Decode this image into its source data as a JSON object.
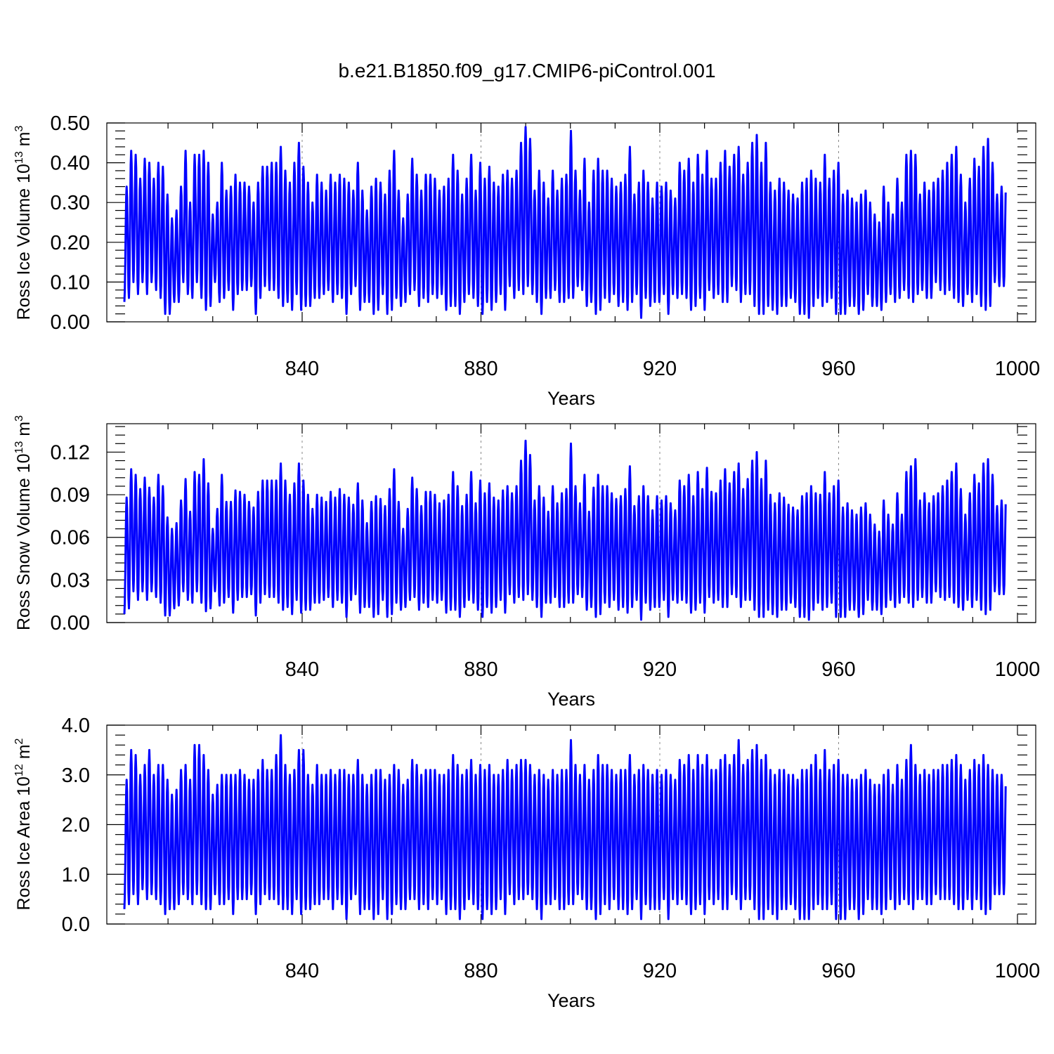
{
  "figure_title": "b.e21.B1850.f09_g17.CMIP6-piControl.001",
  "colors": {
    "series": "#0000ff",
    "axis": "#000000",
    "grid": "#888888"
  },
  "chart_data": [
    {
      "type": "line",
      "ylabel": {
        "text": "Ross Ice Volume 10",
        "exp": "13",
        "unit": " m",
        "unit_exp": "3"
      },
      "xlabel": "Years",
      "xlim": [
        800,
        1000
      ],
      "ylim": [
        0.0,
        0.5
      ],
      "xticks": [
        840,
        880,
        920,
        960,
        1000
      ],
      "yticks": [
        "0.00",
        "0.10",
        "0.20",
        "0.30",
        "0.40",
        "0.50"
      ],
      "ytick_values": [
        0.0,
        0.1,
        0.2,
        0.3,
        0.4,
        0.5
      ],
      "grid_x": [
        840,
        880,
        920,
        960
      ],
      "series_name": "Ross Ice Volume",
      "period_years": 1,
      "peaks": [
        0.34,
        0.43,
        0.42,
        0.36,
        0.41,
        0.4,
        0.36,
        0.4,
        0.39,
        0.32,
        0.26,
        0.28,
        0.34,
        0.43,
        0.3,
        0.42,
        0.42,
        0.43,
        0.4,
        0.27,
        0.3,
        0.4,
        0.33,
        0.34,
        0.37,
        0.35,
        0.35,
        0.34,
        0.3,
        0.35,
        0.39,
        0.39,
        0.4,
        0.4,
        0.44,
        0.38,
        0.35,
        0.4,
        0.45,
        0.39,
        0.35,
        0.3,
        0.37,
        0.35,
        0.33,
        0.37,
        0.35,
        0.37,
        0.36,
        0.35,
        0.33,
        0.4,
        0.33,
        0.28,
        0.34,
        0.36,
        0.35,
        0.32,
        0.38,
        0.43,
        0.33,
        0.26,
        0.32,
        0.41,
        0.37,
        0.33,
        0.37,
        0.37,
        0.36,
        0.33,
        0.34,
        0.36,
        0.42,
        0.38,
        0.32,
        0.36,
        0.42,
        0.33,
        0.4,
        0.36,
        0.39,
        0.35,
        0.34,
        0.37,
        0.38,
        0.36,
        0.38,
        0.45,
        0.49,
        0.46,
        0.33,
        0.38,
        0.35,
        0.31,
        0.38,
        0.33,
        0.36,
        0.37,
        0.48,
        0.38,
        0.33,
        0.41,
        0.3,
        0.38,
        0.41,
        0.38,
        0.38,
        0.36,
        0.34,
        0.35,
        0.37,
        0.44,
        0.32,
        0.35,
        0.38,
        0.35,
        0.31,
        0.35,
        0.34,
        0.35,
        0.33,
        0.31,
        0.4,
        0.38,
        0.41,
        0.35,
        0.42,
        0.37,
        0.43,
        0.36,
        0.36,
        0.4,
        0.43,
        0.39,
        0.42,
        0.44,
        0.37,
        0.4,
        0.45,
        0.47,
        0.4,
        0.45,
        0.35,
        0.33,
        0.36,
        0.35,
        0.33,
        0.32,
        0.31,
        0.35,
        0.36,
        0.38,
        0.36,
        0.35,
        0.42,
        0.36,
        0.38,
        0.4,
        0.32,
        0.33,
        0.31,
        0.3,
        0.32,
        0.33,
        0.3,
        0.27,
        0.25,
        0.34,
        0.3,
        0.27,
        0.36,
        0.3,
        0.42,
        0.43,
        0.42,
        0.32,
        0.35,
        0.33,
        0.35,
        0.36,
        0.38,
        0.4,
        0.42,
        0.44,
        0.37,
        0.3,
        0.36,
        0.41,
        0.39,
        0.44,
        0.46,
        0.4,
        0.32,
        0.34,
        0.35,
        0.34,
        0.33
      ],
      "troughs": [
        0.05,
        0.06,
        0.1,
        0.07,
        0.1,
        0.07,
        0.1,
        0.08,
        0.06,
        0.02,
        0.02,
        0.05,
        0.05,
        0.1,
        0.07,
        0.06,
        0.1,
        0.06,
        0.03,
        0.04,
        0.1,
        0.05,
        0.06,
        0.08,
        0.03,
        0.07,
        0.08,
        0.08,
        0.09,
        0.02,
        0.06,
        0.09,
        0.08,
        0.08,
        0.06,
        0.04,
        0.05,
        0.03,
        0.07,
        0.03,
        0.04,
        0.04,
        0.06,
        0.06,
        0.07,
        0.08,
        0.05,
        0.07,
        0.06,
        0.02,
        0.07,
        0.09,
        0.03,
        0.05,
        0.05,
        0.02,
        0.03,
        0.07,
        0.02,
        0.03,
        0.06,
        0.04,
        0.05,
        0.07,
        0.08,
        0.04,
        0.06,
        0.05,
        0.07,
        0.06,
        0.07,
        0.03,
        0.04,
        0.04,
        0.02,
        0.05,
        0.07,
        0.06,
        0.04,
        0.02,
        0.05,
        0.03,
        0.05,
        0.07,
        0.03,
        0.09,
        0.06,
        0.08,
        0.07,
        0.09,
        0.07,
        0.05,
        0.02,
        0.06,
        0.06,
        0.08,
        0.05,
        0.05,
        0.06,
        0.06,
        0.09,
        0.08,
        0.04,
        0.05,
        0.02,
        0.03,
        0.06,
        0.05,
        0.07,
        0.04,
        0.05,
        0.03,
        0.05,
        0.07,
        0.01,
        0.06,
        0.04,
        0.05,
        0.05,
        0.07,
        0.02,
        0.07,
        0.06,
        0.07,
        0.06,
        0.03,
        0.04,
        0.06,
        0.03,
        0.08,
        0.06,
        0.07,
        0.05,
        0.05,
        0.09,
        0.08,
        0.05,
        0.07,
        0.07,
        0.04,
        0.02,
        0.02,
        0.04,
        0.03,
        0.02,
        0.04,
        0.04,
        0.06,
        0.05,
        0.02,
        0.02,
        0.01,
        0.04,
        0.06,
        0.04,
        0.05,
        0.06,
        0.02,
        0.02,
        0.02,
        0.04,
        0.04,
        0.02,
        0.03,
        0.07,
        0.04,
        0.04,
        0.03,
        0.05,
        0.07,
        0.05,
        0.06,
        0.08,
        0.06,
        0.05,
        0.07,
        0.08,
        0.06,
        0.06,
        0.1,
        0.08,
        0.07,
        0.08,
        0.06,
        0.05,
        0.04,
        0.07,
        0.05,
        0.07,
        0.04,
        0.03,
        0.04,
        0.1,
        0.09,
        0.09
      ]
    },
    {
      "type": "line",
      "ylabel": {
        "text": "Ross Snow Volume 10",
        "exp": "13",
        "unit": " m",
        "unit_exp": "3"
      },
      "xlabel": "Years",
      "xlim": [
        800,
        1000
      ],
      "ylim": [
        0.0,
        0.14
      ],
      "xticks": [
        840,
        880,
        920,
        960,
        1000
      ],
      "yticks": [
        "0.00",
        "0.03",
        "0.06",
        "0.09",
        "0.12"
      ],
      "ytick_values": [
        0.0,
        0.03,
        0.06,
        0.09,
        0.12
      ],
      "grid_x": [
        840,
        880,
        920,
        960
      ],
      "series_name": "Ross Snow Volume",
      "period_years": 1,
      "peaks": [
        0.088,
        0.108,
        0.104,
        0.094,
        0.102,
        0.095,
        0.088,
        0.104,
        0.096,
        0.074,
        0.066,
        0.07,
        0.086,
        0.101,
        0.078,
        0.106,
        0.104,
        0.115,
        0.098,
        0.066,
        0.08,
        0.104,
        0.085,
        0.085,
        0.093,
        0.092,
        0.09,
        0.085,
        0.081,
        0.092,
        0.1,
        0.1,
        0.1,
        0.1,
        0.112,
        0.1,
        0.09,
        0.098,
        0.112,
        0.1,
        0.09,
        0.08,
        0.09,
        0.088,
        0.085,
        0.092,
        0.088,
        0.094,
        0.09,
        0.088,
        0.083,
        0.098,
        0.086,
        0.07,
        0.085,
        0.089,
        0.087,
        0.082,
        0.094,
        0.108,
        0.085,
        0.066,
        0.08,
        0.102,
        0.094,
        0.082,
        0.092,
        0.092,
        0.09,
        0.084,
        0.086,
        0.09,
        0.106,
        0.096,
        0.082,
        0.09,
        0.106,
        0.084,
        0.1,
        0.091,
        0.098,
        0.088,
        0.086,
        0.093,
        0.096,
        0.091,
        0.096,
        0.114,
        0.128,
        0.118,
        0.086,
        0.096,
        0.088,
        0.078,
        0.096,
        0.084,
        0.091,
        0.094,
        0.126,
        0.096,
        0.084,
        0.104,
        0.078,
        0.095,
        0.104,
        0.096,
        0.096,
        0.091,
        0.087,
        0.089,
        0.094,
        0.11,
        0.082,
        0.089,
        0.096,
        0.089,
        0.079,
        0.089,
        0.086,
        0.089,
        0.084,
        0.079,
        0.1,
        0.096,
        0.104,
        0.089,
        0.106,
        0.094,
        0.109,
        0.092,
        0.091,
        0.1,
        0.108,
        0.098,
        0.106,
        0.112,
        0.094,
        0.101,
        0.114,
        0.12,
        0.101,
        0.114,
        0.09,
        0.084,
        0.091,
        0.088,
        0.083,
        0.081,
        0.079,
        0.089,
        0.091,
        0.096,
        0.091,
        0.09,
        0.106,
        0.091,
        0.096,
        0.1,
        0.081,
        0.084,
        0.079,
        0.076,
        0.081,
        0.084,
        0.076,
        0.069,
        0.064,
        0.086,
        0.076,
        0.069,
        0.091,
        0.076,
        0.106,
        0.11,
        0.115,
        0.086,
        0.091,
        0.084,
        0.089,
        0.091,
        0.096,
        0.1,
        0.106,
        0.112,
        0.094,
        0.076,
        0.091,
        0.104,
        0.098,
        0.112,
        0.115,
        0.104,
        0.082,
        0.086,
        0.09,
        0.086,
        0.082
      ],
      "troughs": [
        0.006,
        0.01,
        0.022,
        0.016,
        0.022,
        0.016,
        0.022,
        0.018,
        0.014,
        0.005,
        0.005,
        0.01,
        0.012,
        0.022,
        0.016,
        0.014,
        0.022,
        0.014,
        0.008,
        0.01,
        0.022,
        0.012,
        0.014,
        0.018,
        0.007,
        0.016,
        0.018,
        0.018,
        0.02,
        0.005,
        0.014,
        0.02,
        0.018,
        0.018,
        0.014,
        0.009,
        0.011,
        0.006,
        0.016,
        0.007,
        0.009,
        0.009,
        0.014,
        0.014,
        0.016,
        0.018,
        0.011,
        0.016,
        0.014,
        0.004,
        0.016,
        0.02,
        0.007,
        0.011,
        0.011,
        0.004,
        0.006,
        0.016,
        0.004,
        0.006,
        0.014,
        0.009,
        0.011,
        0.016,
        0.018,
        0.009,
        0.014,
        0.011,
        0.016,
        0.014,
        0.016,
        0.007,
        0.009,
        0.009,
        0.004,
        0.011,
        0.016,
        0.014,
        0.009,
        0.004,
        0.011,
        0.007,
        0.011,
        0.016,
        0.007,
        0.02,
        0.014,
        0.018,
        0.016,
        0.02,
        0.016,
        0.011,
        0.004,
        0.014,
        0.014,
        0.018,
        0.011,
        0.011,
        0.014,
        0.014,
        0.02,
        0.018,
        0.009,
        0.011,
        0.004,
        0.006,
        0.014,
        0.011,
        0.016,
        0.009,
        0.011,
        0.007,
        0.011,
        0.016,
        0.002,
        0.014,
        0.009,
        0.011,
        0.011,
        0.016,
        0.004,
        0.016,
        0.014,
        0.016,
        0.014,
        0.007,
        0.009,
        0.014,
        0.007,
        0.018,
        0.014,
        0.016,
        0.011,
        0.011,
        0.02,
        0.018,
        0.011,
        0.016,
        0.016,
        0.009,
        0.004,
        0.004,
        0.009,
        0.006,
        0.004,
        0.009,
        0.009,
        0.014,
        0.011,
        0.004,
        0.004,
        0.002,
        0.009,
        0.014,
        0.009,
        0.011,
        0.014,
        0.004,
        0.004,
        0.004,
        0.009,
        0.009,
        0.004,
        0.006,
        0.016,
        0.009,
        0.009,
        0.006,
        0.011,
        0.016,
        0.011,
        0.014,
        0.018,
        0.014,
        0.011,
        0.016,
        0.018,
        0.014,
        0.014,
        0.022,
        0.018,
        0.016,
        0.018,
        0.014,
        0.011,
        0.009,
        0.016,
        0.011,
        0.016,
        0.009,
        0.006,
        0.009,
        0.022,
        0.02,
        0.02
      ]
    },
    {
      "type": "line",
      "ylabel": {
        "text": "Ross Ice Area 10",
        "exp": "12",
        "unit": " m",
        "unit_exp": "2"
      },
      "xlabel": "Years",
      "xlim": [
        800,
        1000
      ],
      "ylim": [
        0.0,
        4.0
      ],
      "xticks": [
        840,
        880,
        920,
        960,
        1000
      ],
      "yticks": [
        "0.0",
        "1.0",
        "2.0",
        "3.0",
        "4.0"
      ],
      "ytick_values": [
        0.0,
        1.0,
        2.0,
        3.0,
        4.0
      ],
      "grid_x": [
        840,
        880,
        920,
        960
      ],
      "series_name": "Ross Ice Area",
      "period_years": 1,
      "peaks": [
        2.9,
        3.5,
        3.4,
        3.0,
        3.2,
        3.5,
        3.0,
        3.2,
        3.2,
        2.9,
        2.6,
        2.7,
        3.1,
        3.2,
        2.9,
        3.6,
        3.6,
        3.4,
        3.1,
        2.6,
        2.8,
        3.0,
        3.0,
        3.0,
        3.0,
        3.1,
        3.0,
        2.9,
        2.9,
        3.1,
        3.3,
        3.1,
        3.1,
        3.4,
        3.8,
        3.2,
        3.0,
        3.1,
        3.5,
        3.5,
        3.0,
        2.8,
        3.2,
        3.0,
        3.0,
        3.1,
        3.0,
        3.1,
        3.1,
        3.0,
        3.0,
        3.3,
        3.0,
        2.8,
        3.0,
        3.1,
        3.1,
        2.9,
        3.0,
        3.2,
        3.1,
        2.8,
        2.9,
        3.3,
        3.2,
        3.0,
        3.1,
        3.1,
        3.1,
        3.0,
        3.0,
        3.1,
        3.4,
        3.2,
        3.0,
        3.1,
        3.3,
        3.0,
        3.2,
        3.1,
        3.2,
        3.0,
        3.0,
        3.1,
        3.3,
        3.1,
        3.2,
        3.3,
        3.3,
        3.2,
        3.0,
        3.1,
        3.0,
        2.9,
        3.1,
        3.0,
        3.1,
        3.1,
        3.7,
        3.2,
        3.0,
        3.2,
        2.9,
        3.1,
        3.4,
        3.2,
        3.2,
        3.1,
        3.0,
        3.1,
        3.1,
        3.4,
        3.0,
        3.1,
        3.2,
        3.1,
        3.0,
        3.1,
        3.0,
        3.1,
        3.0,
        2.9,
        3.3,
        3.2,
        3.4,
        3.1,
        3.4,
        3.2,
        3.4,
        3.1,
        3.1,
        3.3,
        3.4,
        3.2,
        3.4,
        3.7,
        3.2,
        3.3,
        3.5,
        3.6,
        3.3,
        3.4,
        3.1,
        3.0,
        3.1,
        3.1,
        3.0,
        3.0,
        2.9,
        3.1,
        3.1,
        3.2,
        3.4,
        3.1,
        3.5,
        3.1,
        3.2,
        3.3,
        3.0,
        3.0,
        2.9,
        2.9,
        3.0,
        3.1,
        2.9,
        2.8,
        2.8,
        3.0,
        3.1,
        2.8,
        3.2,
        2.9,
        3.3,
        3.6,
        3.2,
        3.0,
        3.1,
        3.0,
        3.1,
        3.1,
        3.2,
        3.2,
        3.3,
        3.4,
        3.2,
        2.9,
        3.1,
        3.3,
        3.2,
        3.4,
        3.2,
        3.1,
        3.0,
        3.0,
        3.0,
        3.0,
        2.9
      ],
      "troughs": [
        0.3,
        0.4,
        0.6,
        0.4,
        0.7,
        0.5,
        0.6,
        0.5,
        0.4,
        0.2,
        0.3,
        0.3,
        0.4,
        0.6,
        0.5,
        0.4,
        0.6,
        0.4,
        0.3,
        0.3,
        0.6,
        0.4,
        0.4,
        0.5,
        0.2,
        0.5,
        0.5,
        0.5,
        0.6,
        0.2,
        0.4,
        0.6,
        0.5,
        0.5,
        0.4,
        0.3,
        0.3,
        0.2,
        0.5,
        0.2,
        0.3,
        0.3,
        0.4,
        0.4,
        0.5,
        0.5,
        0.3,
        0.5,
        0.4,
        0.1,
        0.5,
        0.6,
        0.2,
        0.3,
        0.3,
        0.1,
        0.2,
        0.5,
        0.1,
        0.2,
        0.4,
        0.3,
        0.3,
        0.5,
        0.5,
        0.3,
        0.4,
        0.3,
        0.5,
        0.4,
        0.5,
        0.2,
        0.3,
        0.3,
        0.1,
        0.3,
        0.5,
        0.4,
        0.3,
        0.1,
        0.3,
        0.2,
        0.3,
        0.5,
        0.2,
        0.6,
        0.4,
        0.5,
        0.5,
        0.6,
        0.5,
        0.3,
        0.1,
        0.4,
        0.4,
        0.5,
        0.3,
        0.3,
        0.4,
        0.4,
        0.6,
        0.5,
        0.3,
        0.3,
        0.1,
        0.2,
        0.4,
        0.3,
        0.5,
        0.3,
        0.3,
        0.2,
        0.3,
        0.5,
        0.1,
        0.4,
        0.3,
        0.3,
        0.3,
        0.5,
        0.1,
        0.5,
        0.4,
        0.5,
        0.4,
        0.2,
        0.3,
        0.4,
        0.2,
        0.5,
        0.4,
        0.5,
        0.3,
        0.3,
        0.6,
        0.5,
        0.3,
        0.5,
        0.5,
        0.3,
        0.1,
        0.1,
        0.3,
        0.2,
        0.1,
        0.3,
        0.3,
        0.4,
        0.3,
        0.1,
        0.1,
        0.1,
        0.3,
        0.4,
        0.3,
        0.3,
        0.4,
        0.1,
        0.1,
        0.1,
        0.3,
        0.3,
        0.1,
        0.2,
        0.5,
        0.3,
        0.3,
        0.2,
        0.3,
        0.5,
        0.3,
        0.4,
        0.5,
        0.4,
        0.3,
        0.5,
        0.5,
        0.4,
        0.4,
        0.6,
        0.5,
        0.5,
        0.5,
        0.4,
        0.3,
        0.3,
        0.5,
        0.3,
        0.5,
        0.3,
        0.2,
        0.3,
        0.6,
        0.6,
        0.6
      ]
    }
  ]
}
